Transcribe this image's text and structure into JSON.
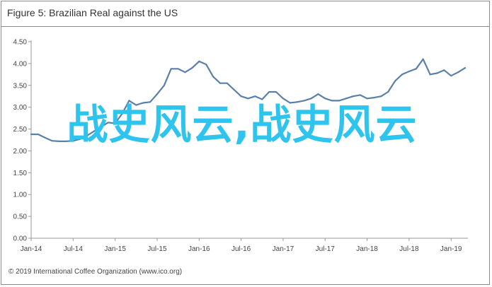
{
  "chart_data": {
    "type": "line",
    "title": "Figure 5: Brazilian Real against the US",
    "xlabel": "",
    "ylabel": "",
    "ylim": [
      0,
      4.5
    ],
    "yticks": [
      "0.00",
      "0.50",
      "1.00",
      "1.50",
      "2.00",
      "2.50",
      "3.00",
      "3.50",
      "4.00",
      "4.50"
    ],
    "xticks": [
      "Jan-14",
      "Jul-14",
      "Jan-15",
      "Jul-15",
      "Jan-16",
      "Jul-16",
      "Jan-17",
      "Jul-17",
      "Jan-18",
      "Jul-18",
      "Jan-19"
    ],
    "grid": false,
    "line_color": "#5b80a8",
    "series": [
      {
        "x": [
          "Jan-14",
          "Feb-14",
          "Mar-14",
          "Apr-14",
          "May-14",
          "Jun-14",
          "Jul-14",
          "Aug-14",
          "Sep-14",
          "Oct-14",
          "Nov-14",
          "Dec-14",
          "Jan-15",
          "Feb-15",
          "Mar-15",
          "Apr-15",
          "May-15",
          "Jun-15",
          "Jul-15",
          "Aug-15",
          "Sep-15",
          "Oct-15",
          "Nov-15",
          "Dec-15",
          "Jan-16",
          "Feb-16",
          "Mar-16",
          "Apr-16",
          "May-16",
          "Jun-16",
          "Jul-16",
          "Aug-16",
          "Sep-16",
          "Oct-16",
          "Nov-16",
          "Dec-16",
          "Jan-17",
          "Feb-17",
          "Mar-17",
          "Apr-17",
          "May-17",
          "Jun-17",
          "Jul-17",
          "Aug-17",
          "Sep-17",
          "Oct-17",
          "Nov-17",
          "Dec-17",
          "Jan-18",
          "Feb-18",
          "Mar-18",
          "Apr-18",
          "May-18",
          "Jun-18",
          "Jul-18",
          "Aug-18",
          "Sep-18",
          "Oct-18",
          "Nov-18",
          "Dec-18",
          "Jan-19",
          "Feb-19",
          "Mar-19"
        ],
        "values": [
          2.38,
          2.38,
          2.3,
          2.23,
          2.22,
          2.22,
          2.23,
          2.27,
          2.35,
          2.45,
          2.55,
          2.65,
          2.63,
          2.85,
          3.15,
          3.05,
          3.1,
          3.12,
          3.3,
          3.5,
          3.88,
          3.88,
          3.8,
          3.9,
          4.05,
          3.98,
          3.7,
          3.55,
          3.55,
          3.4,
          3.25,
          3.2,
          3.25,
          3.18,
          3.35,
          3.35,
          3.2,
          3.1,
          3.12,
          3.15,
          3.2,
          3.3,
          3.2,
          3.15,
          3.15,
          3.2,
          3.25,
          3.28,
          3.2,
          3.22,
          3.25,
          3.35,
          3.6,
          3.75,
          3.82,
          3.88,
          4.1,
          3.75,
          3.78,
          3.85,
          3.72,
          3.8,
          3.9
        ]
      }
    ]
  },
  "source_note": "© 2019 International Coffee Organization (www.ico.org)",
  "overlay_text": "战史风云,战史风云"
}
